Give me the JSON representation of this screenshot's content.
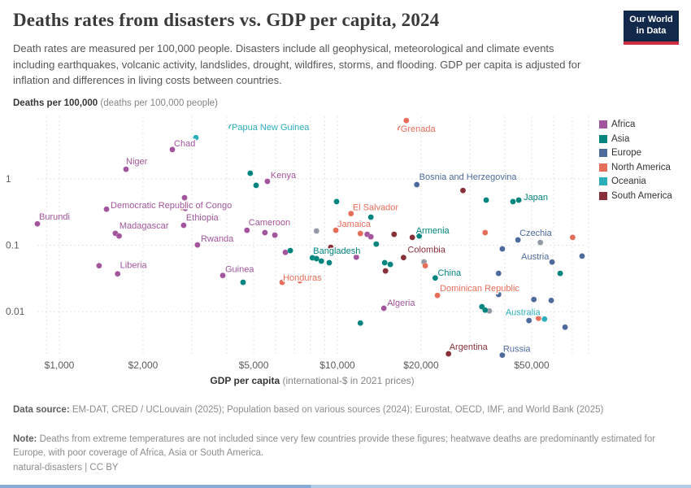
{
  "header": {
    "title": "Deaths rates from disasters vs. GDP per capita, 2024",
    "subtitle": "Death rates are measured per 100,000 people. Disasters include all geophysical, meteorological and climate events including earthquakes, volcanic activity, landslides, drought, wildfires, storms, and flooding. GDP per capita is adjusted for inflation and differences in living costs between countries.",
    "logo": {
      "line1": "Our World",
      "line2": "in Data"
    }
  },
  "chart_data": {
    "type": "scatter",
    "title": "Deaths rates from disasters vs. GDP per capita, 2024",
    "x_axis": {
      "title_bold": "GDP per capita",
      "title_rest": " (international-$ in 2021 prices)",
      "scale": "log",
      "range": [
        800,
        85000
      ],
      "ticks": [
        {
          "label": "$1,000",
          "value": 1000
        },
        {
          "label": "$2,000",
          "value": 2000
        },
        {
          "label": "$5,000",
          "value": 5000
        },
        {
          "label": "$10,000",
          "value": 10000
        },
        {
          "label": "$20,000",
          "value": 20000
        },
        {
          "label": "$50,000",
          "value": 50000
        }
      ],
      "gridlines": [
        900,
        1000,
        2000,
        3000,
        4000,
        5000,
        6000,
        7000,
        8000,
        9000,
        10000,
        20000,
        30000,
        40000,
        50000,
        60000,
        70000,
        80000
      ]
    },
    "y_axis": {
      "title_bold": "Deaths per 100,000",
      "title_rest": " (deaths per 100,000 people)",
      "scale": "log",
      "range": [
        0.002,
        9
      ],
      "ticks": [
        {
          "label": "1",
          "value": 1
        },
        {
          "label": "0.1",
          "value": 0.1
        },
        {
          "label": "0.01",
          "value": 0.01
        }
      ],
      "gridlines": [
        1,
        0.1,
        0.01
      ]
    },
    "legend": [
      {
        "label": "Africa",
        "color": "#a2559c"
      },
      {
        "label": "Asia",
        "color": "#00847e"
      },
      {
        "label": "Europe",
        "color": "#4c6a9c"
      },
      {
        "label": "North America",
        "color": "#e56e5a"
      },
      {
        "label": "Oceania",
        "color": "#2caeba"
      },
      {
        "label": "South America",
        "color": "#883039"
      }
    ],
    "series": [
      {
        "name": "Other",
        "color": "#939aa6",
        "in_legend": false,
        "points": [
          {
            "gdp": 8410,
            "rate": 0.164
          },
          {
            "gdp": 20500,
            "rate": 0.056
          },
          {
            "gdp": 53700,
            "rate": 0.11
          },
          {
            "gdp": 35200,
            "rate": 0.0102
          }
        ]
      },
      {
        "name": "Africa",
        "color": "#a2559c",
        "points": [
          {
            "gdp": 834,
            "rate": 0.21,
            "label": "Burundi",
            "dx": 2,
            "dy": -5
          },
          {
            "gdp": 1478,
            "rate": 0.35,
            "label": "Democratic Republic of Congo",
            "dx": 5,
            "dy": -1
          },
          {
            "gdp": 1737,
            "rate": 1.4,
            "label": "Niger",
            "dx": 0,
            "dy": -6
          },
          {
            "gdp": 2550,
            "rate": 2.77,
            "label": "Chad",
            "dx": 2,
            "dy": -4
          },
          {
            "gdp": 5600,
            "rate": 0.92,
            "label": "Kenya",
            "dx": 4,
            "dy": -4
          },
          {
            "gdp": 2800,
            "rate": 0.2,
            "label": "Ethiopia",
            "dx": 3,
            "dy": -6
          },
          {
            "gdp": 1590,
            "rate": 0.151,
            "label": "Madagascar",
            "dx": 5,
            "dy": -6
          },
          {
            "gdp": 1640,
            "rate": 0.138
          },
          {
            "gdp": 3140,
            "rate": 0.101,
            "label": "Rwanda",
            "dx": 4,
            "dy": -4
          },
          {
            "gdp": 1620,
            "rate": 0.037,
            "label": "Liberia",
            "dx": 3,
            "dy": -7
          },
          {
            "gdp": 1390,
            "rate": 0.049
          },
          {
            "gdp": 2820,
            "rate": 0.52
          },
          {
            "gdp": 2840,
            "rate": 0.36
          },
          {
            "gdp": 4730,
            "rate": 0.168,
            "label": "Cameroon",
            "dx": 2,
            "dy": -6
          },
          {
            "gdp": 5490,
            "rate": 0.155
          },
          {
            "gdp": 5960,
            "rate": 0.142
          },
          {
            "gdp": 3870,
            "rate": 0.035,
            "label": "Guinea",
            "dx": 3,
            "dy": -4
          },
          {
            "gdp": 6500,
            "rate": 0.078
          },
          {
            "gdp": 11700,
            "rate": 0.066
          },
          {
            "gdp": 12800,
            "rate": 0.146
          },
          {
            "gdp": 13200,
            "rate": 0.134
          },
          {
            "gdp": 14700,
            "rate": 0.0112,
            "label": "Algeria",
            "dx": 4,
            "dy": -3
          }
        ]
      },
      {
        "name": "Asia",
        "color": "#00847e",
        "points": [
          {
            "gdp": 4860,
            "rate": 1.22
          },
          {
            "gdp": 5100,
            "rate": 0.8
          },
          {
            "gdp": 9930,
            "rate": 0.454
          },
          {
            "gdp": 13200,
            "rate": 0.265
          },
          {
            "gdp": 13800,
            "rate": 0.104
          },
          {
            "gdp": 8130,
            "rate": 0.0646,
            "label": "Bangladesh",
            "dx": 1,
            "dy": -5
          },
          {
            "gdp": 8410,
            "rate": 0.0628
          },
          {
            "gdp": 8760,
            "rate": 0.0576
          },
          {
            "gdp": 9350,
            "rate": 0.0544
          },
          {
            "gdp": 4580,
            "rate": 0.0276
          },
          {
            "gdp": 6770,
            "rate": 0.083
          },
          {
            "gdp": 14800,
            "rate": 0.0544
          },
          {
            "gdp": 15500,
            "rate": 0.0513
          },
          {
            "gdp": 19700,
            "rate": 0.138,
            "label": "Armenia",
            "dx": -4,
            "dy": -3
          },
          {
            "gdp": 22500,
            "rate": 0.032,
            "label": "China",
            "dx": 3,
            "dy": -3
          },
          {
            "gdp": 34300,
            "rate": 0.48
          },
          {
            "gdp": 42800,
            "rate": 0.454
          },
          {
            "gdp": 44900,
            "rate": 0.48,
            "label": "Japan",
            "dx": 6,
            "dy": 0
          },
          {
            "gdp": 63300,
            "rate": 0.0376
          },
          {
            "gdp": 33100,
            "rate": 0.0118
          },
          {
            "gdp": 34000,
            "rate": 0.0105
          },
          {
            "gdp": 12100,
            "rate": 0.0067
          }
        ]
      },
      {
        "name": "Europe",
        "color": "#4c6a9c",
        "points": [
          {
            "gdp": 19300,
            "rate": 0.82,
            "label": "Bosnia and Herzegovina",
            "dx": 3,
            "dy": -6
          },
          {
            "gdp": 44600,
            "rate": 0.12,
            "label": "Czechia",
            "dx": 2,
            "dy": -5
          },
          {
            "gdp": 39200,
            "rate": 0.088
          },
          {
            "gdp": 59200,
            "rate": 0.0557,
            "label": "Austria",
            "dx": -38,
            "dy": -3
          },
          {
            "gdp": 75900,
            "rate": 0.0684
          },
          {
            "gdp": 38000,
            "rate": 0.0376
          },
          {
            "gdp": 38000,
            "rate": 0.0181
          },
          {
            "gdp": 50900,
            "rate": 0.0152
          },
          {
            "gdp": 58800,
            "rate": 0.0147
          },
          {
            "gdp": 48900,
            "rate": 0.0073
          },
          {
            "gdp": 65900,
            "rate": 0.0058
          },
          {
            "gdp": 39200,
            "rate": 0.0022,
            "label": "Russia",
            "dx": 1,
            "dy": -4
          }
        ]
      },
      {
        "name": "North America",
        "color": "#e56e5a",
        "points": [
          {
            "gdp": 17700,
            "rate": 7.6,
            "label": "Grenada",
            "dx": -7,
            "dy": 14,
            "anchor": true
          },
          {
            "gdp": 2760,
            "rate": 0.37
          },
          {
            "gdp": 11200,
            "rate": 0.3,
            "label": "El Salvador",
            "dx": 2,
            "dy": -4
          },
          {
            "gdp": 9870,
            "rate": 0.168,
            "label": "Jamaica",
            "dx": 2,
            "dy": -4
          },
          {
            "gdp": 12100,
            "rate": 0.15
          },
          {
            "gdp": 6330,
            "rate": 0.0276,
            "label": "Honduras",
            "dx": 1,
            "dy": -2
          },
          {
            "gdp": 7330,
            "rate": 0.0292
          },
          {
            "gdp": 34000,
            "rate": 0.155
          },
          {
            "gdp": 70200,
            "rate": 0.131
          },
          {
            "gdp": 20700,
            "rate": 0.049
          },
          {
            "gdp": 22900,
            "rate": 0.0175,
            "label": "Dominican Republic",
            "dx": 3,
            "dy": -5
          },
          {
            "gdp": 52900,
            "rate": 0.0079
          }
        ]
      },
      {
        "name": "Oceania",
        "color": "#2caeba",
        "points": [
          {
            "gdp": 3100,
            "rate": 4.2,
            "label": "Papua New Guinea",
            "dx": 44,
            "dy": -9,
            "anchor": true
          },
          {
            "gdp": 55600,
            "rate": 0.0077,
            "label": "Australia",
            "dx": -48,
            "dy": -5
          }
        ]
      },
      {
        "name": "South America",
        "color": "#883039",
        "points": [
          {
            "gdp": 9470,
            "rate": 0.093
          },
          {
            "gdp": 16000,
            "rate": 0.146
          },
          {
            "gdp": 18600,
            "rate": 0.131
          },
          {
            "gdp": 28300,
            "rate": 0.67
          },
          {
            "gdp": 14900,
            "rate": 0.041
          },
          {
            "gdp": 17300,
            "rate": 0.065,
            "label": "Colombia",
            "dx": 5,
            "dy": -6
          },
          {
            "gdp": 25100,
            "rate": 0.0023,
            "label": "Argentina",
            "dx": 1,
            "dy": -5
          }
        ]
      }
    ]
  },
  "footer": {
    "datasource_label": "Data source:",
    "datasource_text": " EM-DAT, CRED / UCLouvain (2025); Population based on various sources (2024); Eurostat, OECD, IMF, and World Bank (2025)",
    "note_label": "Note:",
    "note_text": " Deaths from extreme temperatures are not included since very few countries provide these figures; heatwave deaths are predominantly estimated for Europe, with poor coverage of Africa, Asia or South America.",
    "license": "natural-disasters | CC BY"
  }
}
